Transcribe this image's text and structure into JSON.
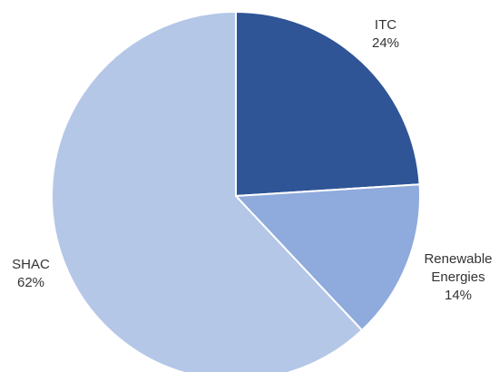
{
  "chart_data": {
    "type": "pie",
    "title": "",
    "slices": [
      {
        "label": [
          "ITC"
        ],
        "percent_label": "24%",
        "value": 24,
        "color": "#2f5597"
      },
      {
        "label": [
          "Renewable",
          "Energies"
        ],
        "percent_label": "14%",
        "value": 14,
        "color": "#8faadc"
      },
      {
        "label": [
          "SHAC"
        ],
        "percent_label": "62%",
        "value": 62,
        "color": "#b4c7e7"
      }
    ],
    "start_angle_deg": 0,
    "direction": "clockwise",
    "slice_border_color": "#ffffff"
  }
}
